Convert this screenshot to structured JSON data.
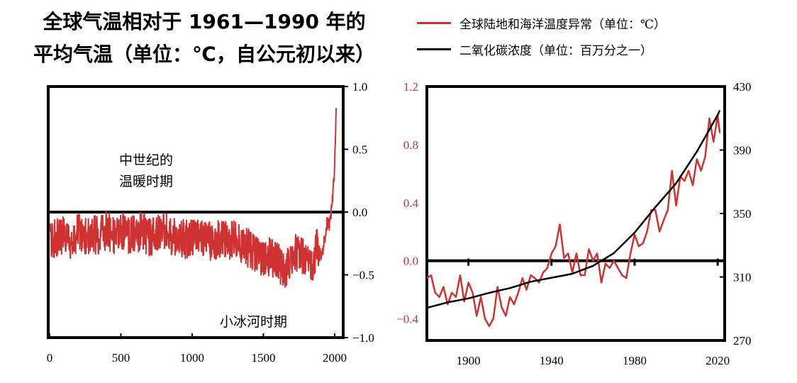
{
  "title_lines": [
    "全球气温相对于 1961—1990 年的",
    "平均气温（单位：℃，自公元初以来）"
  ],
  "legend": [
    {
      "label": "全球陆地和海洋温度异常（单位：℃）",
      "color": "#d03232"
    },
    {
      "label": "二氧化碳浓度（单位：百万分之一）",
      "color": "#000000"
    }
  ],
  "colors": {
    "temperature": "#d03232",
    "co2": "#000000",
    "axis": "#000000"
  },
  "chart_data": [
    {
      "type": "line",
      "xlim": [
        0,
        2000
      ],
      "ylim": [
        -1.0,
        1.0
      ],
      "x_ticks": [
        "0",
        "500",
        "1000",
        "1500",
        "2000"
      ],
      "y_ticks_right": [
        "1.0",
        "0.5",
        "0.0",
        "−0.5",
        "−1.0"
      ],
      "zero_line": 0.0,
      "annotations": [
        "中世纪的",
        "温暖时期",
        "小冰河时期"
      ],
      "series": [
        {
          "name": "全球陆地和海洋温度异常（单位：℃）",
          "color": "#d03232",
          "x": [
            0,
            50,
            100,
            150,
            200,
            250,
            300,
            350,
            400,
            450,
            500,
            550,
            600,
            650,
            700,
            750,
            800,
            850,
            900,
            950,
            1000,
            1050,
            1100,
            1150,
            1200,
            1250,
            1300,
            1350,
            1400,
            1450,
            1500,
            1550,
            1600,
            1650,
            1700,
            1750,
            1800,
            1850,
            1880,
            1900,
            1920,
            1940,
            1950,
            1960,
            1970,
            1980,
            1990,
            2000,
            2010
          ],
          "y": [
            -0.25,
            -0.2,
            -0.18,
            -0.22,
            -0.15,
            -0.2,
            -0.17,
            -0.2,
            -0.14,
            -0.18,
            -0.15,
            -0.2,
            -0.17,
            -0.15,
            -0.2,
            -0.18,
            -0.15,
            -0.2,
            -0.18,
            -0.22,
            -0.2,
            -0.18,
            -0.22,
            -0.25,
            -0.2,
            -0.24,
            -0.22,
            -0.25,
            -0.3,
            -0.35,
            -0.38,
            -0.35,
            -0.4,
            -0.45,
            -0.35,
            -0.3,
            -0.38,
            -0.42,
            -0.25,
            -0.32,
            -0.28,
            -0.12,
            -0.08,
            -0.1,
            -0.05,
            0.05,
            0.18,
            0.35,
            0.85
          ]
        }
      ]
    },
    {
      "type": "line",
      "xlim": [
        1880,
        2022
      ],
      "x_ticks": [
        "1900",
        "1940",
        "1980",
        "2020"
      ],
      "ylim_left": [
        -0.5,
        1.2
      ],
      "y_ticks_left": [
        "1.2",
        "0.8",
        "0.4",
        "0.0",
        "−0.4"
      ],
      "ylim_right": [
        270,
        430
      ],
      "y_ticks_right": [
        "430",
        "390",
        "350",
        "310",
        "270"
      ],
      "zero_line": 0.0,
      "series": [
        {
          "name": "全球陆地和海洋温度异常（单位：℃）",
          "axis": "left",
          "color": "#d03232",
          "x": [
            1880,
            1882,
            1884,
            1886,
            1888,
            1890,
            1892,
            1894,
            1896,
            1898,
            1900,
            1902,
            1904,
            1906,
            1908,
            1910,
            1912,
            1914,
            1916,
            1918,
            1920,
            1922,
            1924,
            1926,
            1928,
            1930,
            1932,
            1934,
            1936,
            1938,
            1940,
            1942,
            1944,
            1946,
            1948,
            1950,
            1952,
            1954,
            1956,
            1958,
            1960,
            1962,
            1964,
            1966,
            1968,
            1970,
            1972,
            1974,
            1976,
            1978,
            1980,
            1982,
            1984,
            1986,
            1988,
            1990,
            1992,
            1994,
            1996,
            1998,
            2000,
            2002,
            2004,
            2006,
            2008,
            2010,
            2012,
            2014,
            2016,
            2018,
            2020,
            2021
          ],
          "y": [
            -0.12,
            -0.1,
            -0.22,
            -0.25,
            -0.18,
            -0.3,
            -0.22,
            -0.25,
            -0.1,
            -0.28,
            -0.15,
            -0.22,
            -0.38,
            -0.25,
            -0.4,
            -0.45,
            -0.4,
            -0.18,
            -0.32,
            -0.38,
            -0.25,
            -0.3,
            -0.22,
            -0.12,
            -0.2,
            -0.1,
            -0.12,
            -0.15,
            -0.08,
            -0.05,
            0.05,
            0.1,
            0.25,
            0.02,
            0.05,
            -0.08,
            0.05,
            -0.1,
            -0.1,
            0.08,
            0.0,
            0.05,
            -0.15,
            -0.02,
            -0.05,
            0.0,
            -0.05,
            -0.1,
            -0.12,
            0.05,
            0.18,
            0.1,
            0.12,
            0.2,
            0.35,
            0.35,
            0.2,
            0.28,
            0.35,
            0.62,
            0.38,
            0.58,
            0.55,
            0.62,
            0.52,
            0.7,
            0.62,
            0.72,
            0.98,
            0.82,
            1.0,
            0.88
          ]
        },
        {
          "name": "二氧化碳浓度（单位：百万分之一）",
          "axis": "right",
          "color": "#000000",
          "x": [
            1880,
            1890,
            1900,
            1910,
            1920,
            1930,
            1940,
            1950,
            1960,
            1970,
            1980,
            1990,
            2000,
            2010,
            2020,
            2021
          ],
          "y": [
            290.5,
            294,
            296.5,
            300,
            303,
            307,
            309.5,
            312,
            317,
            325,
            338,
            354,
            369,
            389,
            412,
            415
          ]
        }
      ]
    }
  ]
}
